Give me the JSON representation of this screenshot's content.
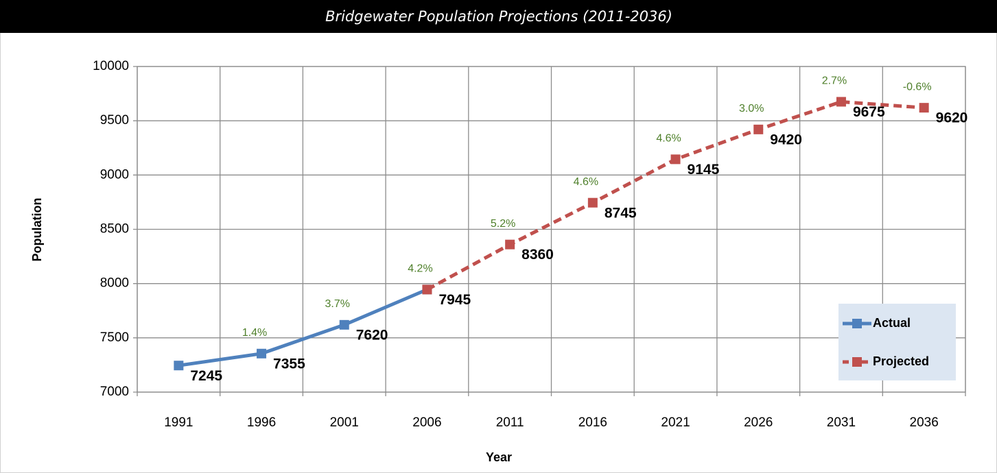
{
  "chart_data": {
    "type": "line",
    "title": "Bridgewater Population Projections (2011-2036)",
    "x_label": "Year",
    "y_label": "Population",
    "categories": [
      "1991",
      "1996",
      "2001",
      "2006",
      "2011",
      "2016",
      "2021",
      "2026",
      "2031",
      "2036"
    ],
    "series": [
      {
        "name": "Actual",
        "color": "#4f81bd",
        "dashed": false,
        "values": [
          7245,
          7355,
          7620,
          7945,
          null,
          null,
          null,
          null,
          null,
          null
        ]
      },
      {
        "name": "Projected",
        "color": "#c0504d",
        "dashed": true,
        "values": [
          null,
          null,
          null,
          7945,
          8360,
          8745,
          9145,
          9420,
          9675,
          9620
        ]
      }
    ],
    "annotations": [
      null,
      "1.4%",
      "3.7%",
      "4.2%",
      "5.2%",
      "4.6%",
      "4.6%",
      "3.0%",
      "2.7%",
      "-0.6%"
    ],
    "annotation_color": "#4e7f2a",
    "ylim": [
      7000,
      10000
    ],
    "yticks": [
      7000,
      7500,
      8000,
      8500,
      9000,
      9500,
      10000
    ],
    "grid": true,
    "legend": "lower right"
  }
}
